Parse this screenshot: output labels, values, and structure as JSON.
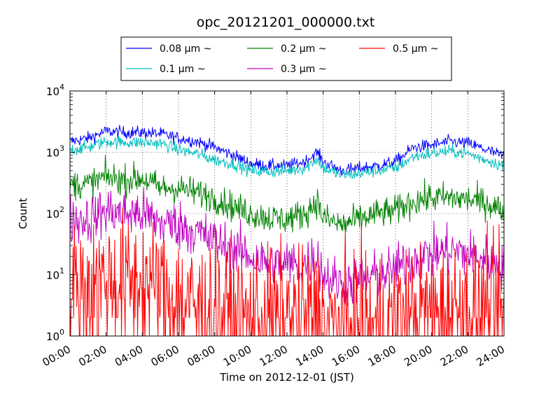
{
  "chart_data": {
    "type": "line",
    "title": "opc_20121201_000000.txt",
    "xlabel": "Time on 2012-12-01 (JST)",
    "ylabel": "Count",
    "y_scale": "log",
    "ylim": [
      1,
      10000
    ],
    "y_ticks": [
      {
        "value": 1,
        "base": "10",
        "exp": "0"
      },
      {
        "value": 10,
        "base": "10",
        "exp": "1"
      },
      {
        "value": 100,
        "base": "10",
        "exp": "2"
      },
      {
        "value": 1000,
        "base": "10",
        "exp": "3"
      },
      {
        "value": 10000,
        "base": "10",
        "exp": "4"
      }
    ],
    "xlim": [
      "00:00",
      "24:00"
    ],
    "x_ticks": [
      "00:00",
      "02:00",
      "04:00",
      "06:00",
      "08:00",
      "10:00",
      "12:00",
      "14:00",
      "16:00",
      "18:00",
      "20:00",
      "22:00",
      "24:00"
    ],
    "grid": true,
    "legend_position": "top",
    "series": [
      {
        "name": "0.08 μm ~",
        "color": "#0000ff",
        "noise": 0.05,
        "x": [
          "00:00",
          "01:00",
          "02:00",
          "03:00",
          "04:00",
          "05:00",
          "06:00",
          "07:00",
          "08:00",
          "09:00",
          "10:00",
          "11:00",
          "12:00",
          "13:00",
          "13:40",
          "14:00",
          "15:00",
          "16:00",
          "17:00",
          "18:00",
          "19:00",
          "20:00",
          "21:00",
          "22:00",
          "23:00",
          "24:00"
        ],
        "values": [
          1500,
          1700,
          2200,
          2100,
          2100,
          2000,
          1700,
          1500,
          1200,
          900,
          650,
          600,
          600,
          700,
          1000,
          700,
          500,
          550,
          600,
          700,
          1200,
          1300,
          1500,
          1400,
          1100,
          850
        ]
      },
      {
        "name": "0.1 μm ~",
        "color": "#00bfbf",
        "noise": 0.05,
        "x": [
          "00:00",
          "01:00",
          "02:00",
          "03:00",
          "04:00",
          "05:00",
          "06:00",
          "07:00",
          "08:00",
          "09:00",
          "10:00",
          "11:00",
          "12:00",
          "13:00",
          "13:40",
          "14:00",
          "15:00",
          "16:00",
          "17:00",
          "18:00",
          "19:00",
          "20:00",
          "21:00",
          "22:00",
          "23:00",
          "24:00"
        ],
        "values": [
          1100,
          1200,
          1500,
          1450,
          1450,
          1400,
          1100,
          950,
          750,
          650,
          500,
          480,
          500,
          550,
          780,
          550,
          420,
          450,
          500,
          550,
          850,
          950,
          1050,
          950,
          750,
          600
        ]
      },
      {
        "name": "0.2 μm ~",
        "color": "#008000",
        "noise": 0.12,
        "x": [
          "00:00",
          "01:00",
          "02:00",
          "03:00",
          "04:00",
          "05:00",
          "06:00",
          "07:00",
          "08:00",
          "09:00",
          "10:00",
          "11:00",
          "12:00",
          "13:00",
          "13:40",
          "14:00",
          "15:00",
          "16:00",
          "17:00",
          "18:00",
          "19:00",
          "20:00",
          "21:00",
          "22:00",
          "23:00",
          "24:00"
        ],
        "values": [
          300,
          300,
          400,
          350,
          380,
          260,
          260,
          220,
          180,
          130,
          100,
          85,
          80,
          100,
          160,
          85,
          65,
          80,
          100,
          110,
          160,
          180,
          180,
          170,
          150,
          110
        ]
      },
      {
        "name": "0.3 μm ~",
        "color": "#bf00bf",
        "noise": 0.2,
        "x": [
          "00:00",
          "01:00",
          "02:00",
          "03:00",
          "04:00",
          "05:00",
          "06:00",
          "07:00",
          "08:00",
          "09:00",
          "10:00",
          "11:00",
          "12:00",
          "13:00",
          "13:40",
          "14:00",
          "15:00",
          "16:00",
          "17:00",
          "18:00",
          "19:00",
          "20:00",
          "21:00",
          "22:00",
          "23:00",
          "24:00"
        ],
        "values": [
          80,
          80,
          110,
          100,
          100,
          70,
          65,
          50,
          35,
          25,
          20,
          15,
          15,
          15,
          20,
          10,
          7,
          8,
          10,
          12,
          18,
          22,
          25,
          22,
          18,
          14
        ]
      },
      {
        "name": "0.5 μm ~",
        "color": "#ff0000",
        "noise": 0.55,
        "x": [
          "00:00",
          "01:00",
          "02:00",
          "03:00",
          "04:00",
          "05:00",
          "06:00",
          "07:00",
          "08:00",
          "09:00",
          "10:00",
          "11:00",
          "12:00",
          "13:00",
          "13:40",
          "14:00",
          "15:00",
          "16:00",
          "17:00",
          "18:00",
          "19:00",
          "20:00",
          "21:00",
          "22:00",
          "23:00",
          "24:00"
        ],
        "values": [
          6,
          6,
          8,
          7,
          8,
          5,
          4,
          3,
          2.5,
          2,
          2,
          2,
          2,
          2,
          2.5,
          1.5,
          1.5,
          1.5,
          1.6,
          1.8,
          2.2,
          2.5,
          2.8,
          2.8,
          2.5,
          2.2
        ]
      }
    ]
  }
}
